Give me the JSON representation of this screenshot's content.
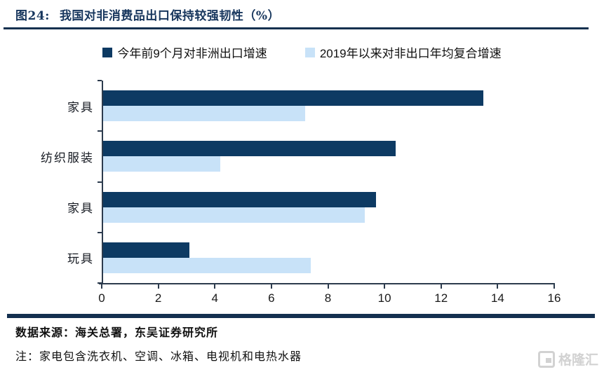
{
  "figure": {
    "label": "图24:",
    "title": "我国对非消费品出口保持较强韧性（%）"
  },
  "legend": [
    {
      "label": "今年前9个月对非洲出口增速",
      "color": "#0d3a63"
    },
    {
      "label": "2019年以来对非出口年均复合增速",
      "color": "#c8e2f8"
    }
  ],
  "chart_data": {
    "type": "bar",
    "orientation": "horizontal",
    "title": "图24: 我国对非消费品出口保持较强韧性（%）",
    "categories": [
      "家具",
      "纺织服装",
      "家具",
      "玩具"
    ],
    "series": [
      {
        "name": "今年前9个月对非洲出口增速",
        "color": "#0d3a63",
        "values": [
          13.5,
          10.4,
          9.7,
          3.1
        ]
      },
      {
        "name": "2019年以来对非出口年均复合增速",
        "color": "#c8e2f8",
        "values": [
          7.2,
          4.2,
          9.3,
          7.4
        ]
      }
    ],
    "xlim": [
      0,
      16
    ],
    "x_ticks": [
      "0",
      "2",
      "4",
      "6",
      "8",
      "10",
      "12",
      "14",
      "16"
    ],
    "grid": false,
    "legend_position": "top-center"
  },
  "footer": {
    "source": "数据来源：海关总署，东吴证券研究所",
    "note": "注：家电包含洗衣机、空调、冰箱、电视机和电热水器",
    "watermark": "格隆汇"
  },
  "colors": {
    "navy": "#0d3a63",
    "light_blue": "#c8e2f8",
    "axis": "#2c3b4d",
    "watermark_gray": "#d2d2d2"
  }
}
